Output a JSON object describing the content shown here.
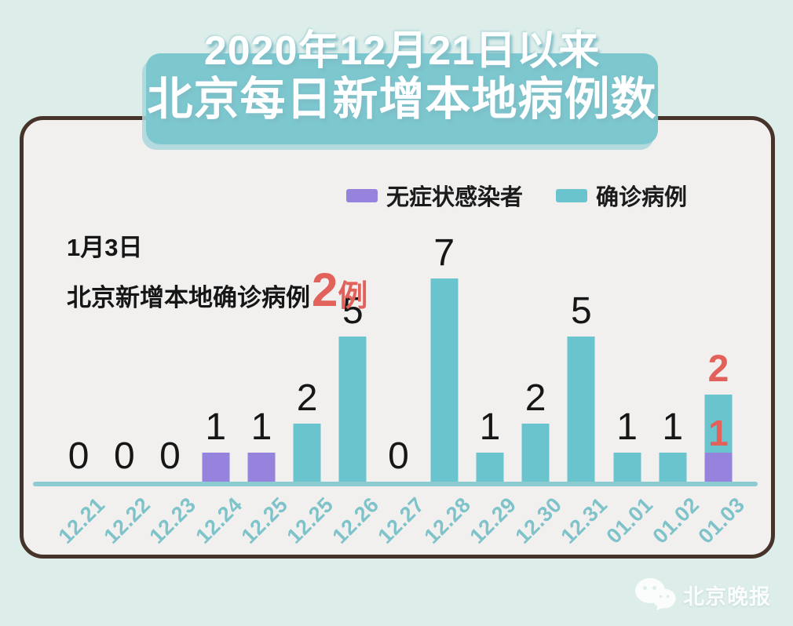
{
  "title": {
    "line1": "2020年12月21日以来",
    "line2": "北京每日新增本地病例数"
  },
  "legend": [
    {
      "label": "无症状感染者",
      "color": "#9583dd"
    },
    {
      "label": "确诊病例",
      "color": "#69c4ce"
    }
  ],
  "annotation": {
    "date": "1月3日",
    "text": "北京新增本地确诊病例",
    "value": "2",
    "unit": "例"
  },
  "watermark": {
    "source": "北京晚报"
  },
  "colors": {
    "background": "#dcedea",
    "card_background": "#f1f0ef",
    "card_border": "#46342a",
    "banner": "#7dc7cf",
    "axis_line": "#8ccbd0",
    "x_tick": "#7fc3ca",
    "value_label": "#161616",
    "highlight_red": "#e2615a"
  },
  "chart_data": {
    "type": "bar",
    "stacked": true,
    "title": "2020年12月21日以来北京每日新增本地病例数",
    "categories": [
      "12.21",
      "12.22",
      "12.23",
      "12.24",
      "12.25",
      "12.25",
      "12.26",
      "12.27",
      "12.28",
      "12.29",
      "12.30",
      "12.31",
      "01.01",
      "01.02",
      "01.03"
    ],
    "series": [
      {
        "name": "无症状感染者",
        "color": "#9583dd",
        "values": [
          0,
          0,
          0,
          1,
          1,
          0,
          0,
          0,
          0,
          0,
          0,
          0,
          0,
          0,
          1
        ]
      },
      {
        "name": "确诊病例",
        "color": "#69c4ce",
        "values": [
          0,
          0,
          0,
          0,
          0,
          2,
          5,
          0,
          7,
          1,
          2,
          5,
          1,
          1,
          2
        ]
      }
    ],
    "value_labels": [
      {
        "text": "0",
        "color": "#161616"
      },
      {
        "text": "0",
        "color": "#161616"
      },
      {
        "text": "0",
        "color": "#161616"
      },
      {
        "text": "1",
        "color": "#161616"
      },
      {
        "text": "1",
        "color": "#161616"
      },
      {
        "text": "2",
        "color": "#161616"
      },
      {
        "text": "5",
        "color": "#161616"
      },
      {
        "text": "0",
        "color": "#161616"
      },
      {
        "text": "7",
        "color": "#161616"
      },
      {
        "text": "1",
        "color": "#161616"
      },
      {
        "text": "2",
        "color": "#161616"
      },
      {
        "text": "5",
        "color": "#161616"
      },
      {
        "text": "1",
        "color": "#161616"
      },
      {
        "text": "1",
        "color": "#161616"
      },
      {
        "text": "2",
        "color": "#e2615a",
        "inner_text": "1",
        "inner_color": "#e2615a"
      }
    ],
    "ylim": [
      0,
      7
    ],
    "grid": false,
    "legend_position": "top",
    "x_tick_rotation": -45
  }
}
